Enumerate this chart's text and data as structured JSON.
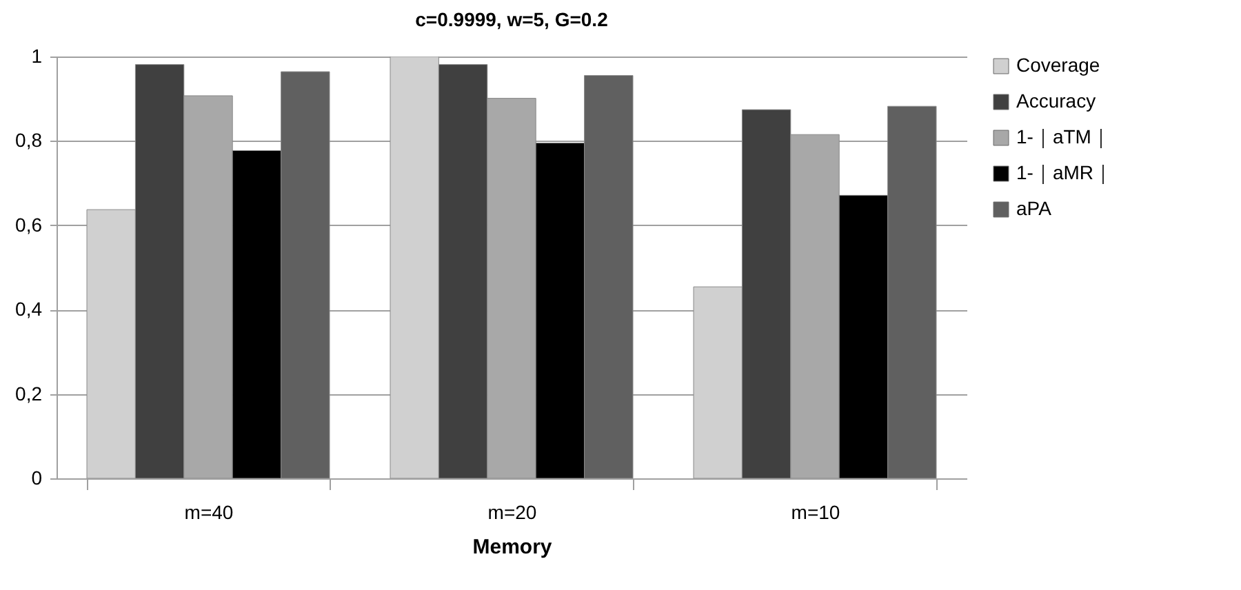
{
  "chart_data": {
    "type": "bar",
    "title": "c=0.9999, w=5, G=0.2",
    "xlabel": "Memory",
    "categories": [
      "m=40",
      "m=20",
      "m=10"
    ],
    "series": [
      {
        "name": "Coverage",
        "color": "#d0d0d0",
        "values": [
          0.637,
          1.0,
          0.454
        ]
      },
      {
        "name": "Accuracy",
        "color": "#404040",
        "values": [
          0.981,
          0.981,
          0.874
        ]
      },
      {
        "name": "1-｜aTM｜",
        "color": "#a8a8a8",
        "values": [
          0.907,
          0.901,
          0.815
        ]
      },
      {
        "name": "1-｜aMR｜",
        "color": "#000000",
        "values": [
          0.777,
          0.795,
          0.671
        ]
      },
      {
        "name": "aPA",
        "color": "#606060",
        "values": [
          0.964,
          0.955,
          0.882
        ]
      }
    ],
    "ylim": [
      0,
      1
    ],
    "yticks": [
      0,
      {
        "value": 0.2,
        "label": "0,2"
      },
      {
        "value": 0.4,
        "label": "0,4"
      },
      {
        "value": 0.6,
        "label": "0,6"
      },
      {
        "value": 0.8,
        "label": "0,8"
      },
      1
    ],
    "grid": "y",
    "legend": "right"
  }
}
